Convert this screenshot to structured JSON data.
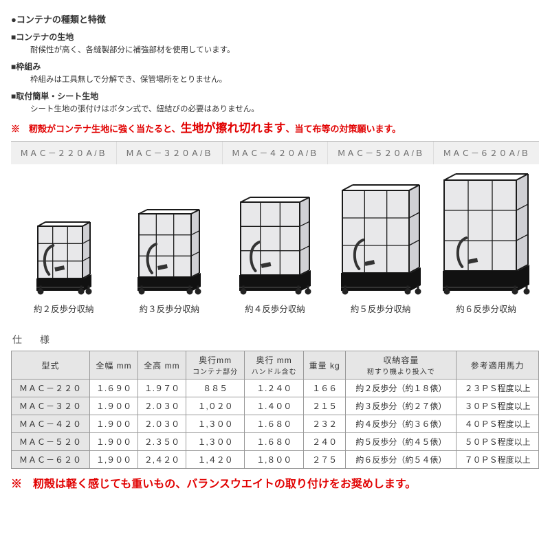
{
  "section_title": "●コンテナの種類と特徴",
  "features": [
    {
      "label": "■コンテナの生地",
      "desc": "耐候性が高く、各縫製部分に補強部材を使用しています。"
    },
    {
      "label": "■枠組み",
      "desc": "枠組みは工具無しで分解でき、保管場所をとりません。"
    },
    {
      "label": "■取付簡単・シート生地",
      "desc": "シート生地の張付けはボタン式で、紐結びの必要はありません。"
    }
  ],
  "warning_prefix": "※　籾殻がコンテナ生地に強く当たると、",
  "warning_big": "生地が擦れ切れます",
  "warning_suffix": "、当て布等の対策願います。",
  "models": [
    "ＭＡＣ－２２０Ａ/Ｂ",
    "ＭＡＣ－３２０Ａ/Ｂ",
    "ＭＡＣ－４２０Ａ/Ｂ",
    "ＭＡＣ－５２０Ａ/Ｂ",
    "ＭＡＣ－６２０Ａ/Ｂ"
  ],
  "product_heights": [
    110,
    128,
    146,
    164,
    180
  ],
  "product_widths": [
    92,
    104,
    116,
    128,
    138
  ],
  "capacities": [
    "約２反歩分収納",
    "約３反歩分収納",
    "約４反歩分収納",
    "約５反歩分収納",
    "約６反歩分収納"
  ],
  "spec_title": "仕　様",
  "headers": {
    "model": "型式",
    "width": "全幅 mm",
    "height": "全高 mm",
    "depth1": "奥行mm",
    "depth1_sub": "コンテナ部分",
    "depth2": "奥行 mm",
    "depth2_sub": "ハンドル含む",
    "weight": "重量 kg",
    "capacity": "収納容量",
    "capacity_sub": "籾すり機より投入で",
    "hp": "参考適用馬力"
  },
  "rows": [
    {
      "model": "ＭＡＣ－２２０",
      "w": "１.６９０",
      "h": "１.９７０",
      "d1": "８８５",
      "d2": "１.２４０",
      "wt": "１６６",
      "cap": "約２反歩分（約１８俵）",
      "hp": "２３ＰＳ程度以上"
    },
    {
      "model": "ＭＡＣ－３２０",
      "w": "１.９００",
      "h": "２.０３０",
      "d1": "１,０２０",
      "d2": "１.４００",
      "wt": "２１５",
      "cap": "約３反歩分（約２７俵）",
      "hp": "３０ＰＳ程度以上"
    },
    {
      "model": "ＭＡＣ－４２０",
      "w": "１.９００",
      "h": "２.０３０",
      "d1": "１,３００",
      "d2": "１.６８０",
      "wt": "２３２",
      "cap": "約４反歩分（約３６俵）",
      "hp": "４０ＰＳ程度以上"
    },
    {
      "model": "ＭＡＣ－５２０",
      "w": "１.９００",
      "h": "２.３５０",
      "d1": "１,３００",
      "d2": "１.６８０",
      "wt": "２４０",
      "cap": "約５反歩分（約４５俵）",
      "hp": "５０ＰＳ程度以上"
    },
    {
      "model": "ＭＡＣ－６２０",
      "w": "１,９００",
      "h": "２,４２０",
      "d1": "１,４２０",
      "d2": "１,８００",
      "wt": "２７５",
      "cap": "約６反歩分（約５４俵）",
      "hp": "７０ＰＳ程度以上"
    }
  ],
  "footer_warning": "※　籾殻は軽く感じても重いもの、バランスウエイトの取り付けをお奨めします。",
  "colors": {
    "frame": "#1a1a1a",
    "sheet_light": "#e8e8ea",
    "sheet_mid": "#d0d0d4",
    "base_dark": "#111111",
    "tube": "#333333",
    "wheel": "#222222"
  }
}
